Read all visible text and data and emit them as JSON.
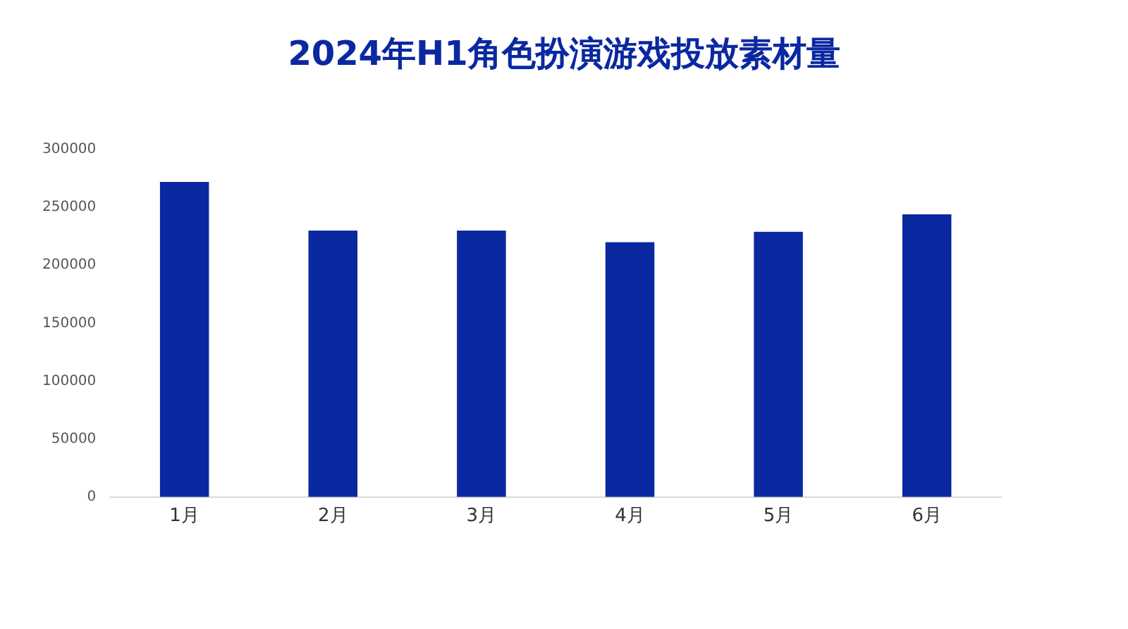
{
  "chart_data": {
    "type": "bar",
    "title": "2024年H1角色扮演游戏投放素材量",
    "categories": [
      "1月",
      "2月",
      "3月",
      "4月",
      "5月",
      "6月"
    ],
    "values": [
      272000,
      230000,
      230000,
      220000,
      229000,
      244000
    ],
    "color": "#0a28a0",
    "ylim": [
      0,
      300000
    ],
    "yticks": [
      0,
      50000,
      100000,
      150000,
      200000,
      250000,
      300000
    ],
    "grid": false,
    "legend": false
  }
}
